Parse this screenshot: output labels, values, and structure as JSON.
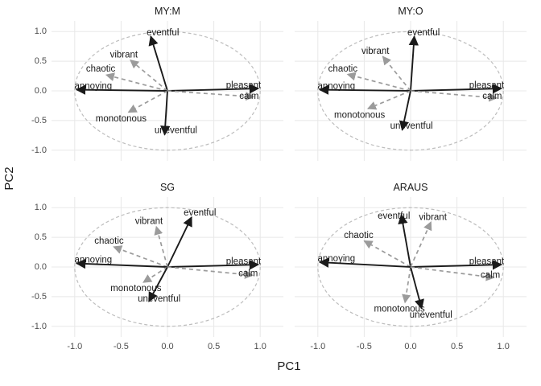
{
  "chart_data": {
    "type": "scatter",
    "subtype": "pca-loading-biplot",
    "title": "",
    "xlabel": "PC1",
    "ylabel": "PC2",
    "xlim": [
      -1.25,
      1.25
    ],
    "ylim": [
      -1.18,
      1.18
    ],
    "xticks": [
      -1.0,
      -0.5,
      0.0,
      0.5,
      1.0
    ],
    "yticks": [
      -1.0,
      -0.5,
      0.0,
      0.5,
      1.0
    ],
    "xtick_labels": [
      "-1.0",
      "-0.5",
      "0.0",
      "0.5",
      "1.0"
    ],
    "ytick_labels": [
      "-1.0",
      "-0.5",
      "0.0",
      "0.5",
      "1.0"
    ],
    "unit_circle": true,
    "grid": true,
    "legend": "none",
    "colors": {
      "solid": "#1a1a1a",
      "dashed": "#9b9b9b",
      "circle": "#bdbdbd",
      "grid": "#e8e8e8",
      "tick_text": "#4d4d4d",
      "label_text": "#1a1a1a"
    },
    "facets": [
      {
        "title": "MY:M",
        "vectors": [
          {
            "label": "eventful",
            "x": -0.18,
            "y": 0.92,
            "style": "solid",
            "label_x": -0.05,
            "label_y": 0.99
          },
          {
            "label": "vibrant",
            "x": -0.4,
            "y": 0.52,
            "style": "dashed",
            "label_x": -0.47,
            "label_y": 0.62
          },
          {
            "label": "chaotic",
            "x": -0.66,
            "y": 0.27,
            "style": "dashed",
            "label_x": -0.72,
            "label_y": 0.38
          },
          {
            "label": "annoying",
            "x": -0.98,
            "y": 0.02,
            "style": "solid",
            "label_x": -0.8,
            "label_y": 0.09
          },
          {
            "label": "monotonous",
            "x": -0.42,
            "y": -0.36,
            "style": "dashed",
            "label_x": -0.5,
            "label_y": -0.46
          },
          {
            "label": "uneventful",
            "x": -0.03,
            "y": -0.74,
            "style": "solid",
            "label_x": 0.09,
            "label_y": -0.66
          },
          {
            "label": "pleasant",
            "x": 0.98,
            "y": 0.04,
            "style": "solid",
            "label_x": 0.82,
            "label_y": 0.1
          },
          {
            "label": "calm",
            "x": 0.93,
            "y": -0.1,
            "style": "dashed",
            "label_x": 0.88,
            "label_y": -0.08
          }
        ]
      },
      {
        "title": "MY:O",
        "vectors": [
          {
            "label": "eventful",
            "x": 0.04,
            "y": 0.92,
            "style": "solid",
            "label_x": 0.14,
            "label_y": 0.99
          },
          {
            "label": "vibrant",
            "x": -0.3,
            "y": 0.58,
            "style": "dashed",
            "label_x": -0.38,
            "label_y": 0.68
          },
          {
            "label": "chaotic",
            "x": -0.68,
            "y": 0.28,
            "style": "dashed",
            "label_x": -0.73,
            "label_y": 0.38
          },
          {
            "label": "annoying",
            "x": -0.98,
            "y": 0.02,
            "style": "solid",
            "label_x": -0.8,
            "label_y": 0.09
          },
          {
            "label": "monotonous",
            "x": -0.46,
            "y": -0.3,
            "style": "dashed",
            "label_x": -0.55,
            "label_y": -0.4
          },
          {
            "label": "uneventful",
            "x": -0.09,
            "y": -0.66,
            "style": "solid",
            "label_x": 0.01,
            "label_y": -0.58
          },
          {
            "label": "pleasant",
            "x": 0.98,
            "y": 0.04,
            "style": "solid",
            "label_x": 0.82,
            "label_y": 0.1
          },
          {
            "label": "calm",
            "x": 0.93,
            "y": -0.12,
            "style": "dashed",
            "label_x": 0.88,
            "label_y": -0.08
          }
        ]
      },
      {
        "title": "SG",
        "vectors": [
          {
            "label": "eventful",
            "x": 0.26,
            "y": 0.84,
            "style": "solid",
            "label_x": 0.35,
            "label_y": 0.92
          },
          {
            "label": "vibrant",
            "x": -0.12,
            "y": 0.68,
            "style": "dashed",
            "label_x": -0.2,
            "label_y": 0.78
          },
          {
            "label": "chaotic",
            "x": -0.58,
            "y": 0.34,
            "style": "dashed",
            "label_x": -0.63,
            "label_y": 0.45
          },
          {
            "label": "annoying",
            "x": -0.98,
            "y": 0.06,
            "style": "solid",
            "label_x": -0.8,
            "label_y": 0.13
          },
          {
            "label": "monotonous",
            "x": -0.26,
            "y": -0.26,
            "style": "dashed",
            "label_x": -0.34,
            "label_y": -0.35
          },
          {
            "label": "uneventful",
            "x": -0.2,
            "y": -0.58,
            "style": "solid",
            "label_x": -0.09,
            "label_y": -0.53
          },
          {
            "label": "pleasant",
            "x": 0.98,
            "y": 0.04,
            "style": "solid",
            "label_x": 0.82,
            "label_y": 0.1
          },
          {
            "label": "calm",
            "x": 0.92,
            "y": -0.14,
            "style": "dashed",
            "label_x": 0.87,
            "label_y": -0.1
          }
        ]
      },
      {
        "title": "ARAUS",
        "vectors": [
          {
            "label": "eventful",
            "x": -0.1,
            "y": 0.88,
            "style": "solid",
            "label_x": -0.18,
            "label_y": 0.87
          },
          {
            "label": "vibrant",
            "x": 0.22,
            "y": 0.76,
            "style": "dashed",
            "label_x": 0.24,
            "label_y": 0.85
          },
          {
            "label": "chaotic",
            "x": -0.5,
            "y": 0.44,
            "style": "dashed",
            "label_x": -0.56,
            "label_y": 0.54
          },
          {
            "label": "annoying",
            "x": -0.98,
            "y": 0.08,
            "style": "solid",
            "label_x": -0.8,
            "label_y": 0.15
          },
          {
            "label": "monotonous",
            "x": -0.06,
            "y": -0.6,
            "style": "dashed",
            "label_x": -0.12,
            "label_y": -0.7
          },
          {
            "label": "uneventful",
            "x": 0.12,
            "y": -0.7,
            "style": "solid",
            "label_x": 0.22,
            "label_y": -0.8
          },
          {
            "label": "pleasant",
            "x": 0.98,
            "y": 0.04,
            "style": "solid",
            "label_x": 0.82,
            "label_y": 0.1
          },
          {
            "label": "calm",
            "x": 0.9,
            "y": -0.18,
            "style": "dashed",
            "label_x": 0.86,
            "label_y": -0.13
          }
        ]
      }
    ]
  }
}
